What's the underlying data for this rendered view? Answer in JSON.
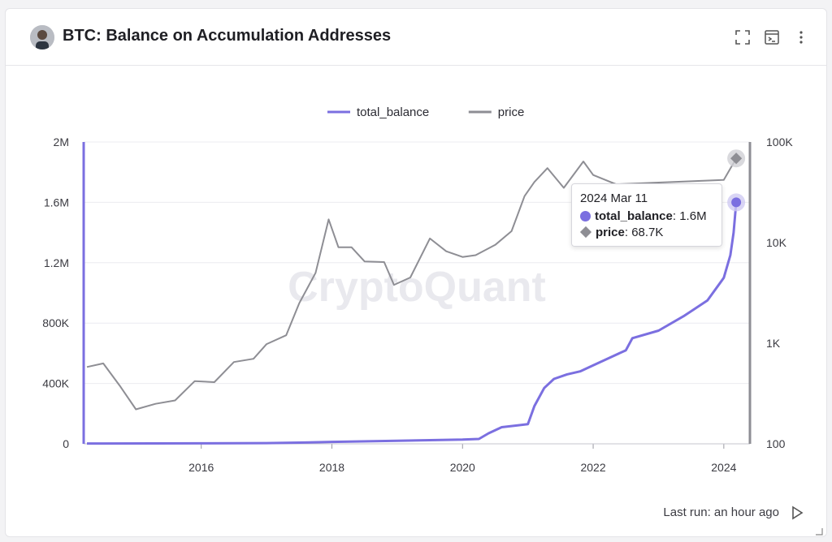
{
  "header": {
    "title": "BTC: Balance on Accumulation Addresses",
    "icons": [
      "expand-icon",
      "terminal-icon",
      "more-vert-icon"
    ]
  },
  "watermark": "CryptoQuant",
  "tooltip": {
    "date": "2024 Mar 11",
    "series": [
      {
        "name": "total_balance",
        "value": "1.6M",
        "color": "#7b6fe0"
      },
      {
        "name": "price",
        "value": "68.7K",
        "color": "#8e8e94"
      }
    ]
  },
  "footer": {
    "last_run": "Last run: an hour ago"
  },
  "colors": {
    "total_balance": "#7b6fe0",
    "price": "#8e8e94",
    "grid": "#ececf0",
    "axis": "#9a9aa2"
  },
  "chart_data": {
    "type": "line",
    "legend_position": "top-center",
    "grid": true,
    "x_ticks": [
      "2016",
      "2018",
      "2020",
      "2022",
      "2024"
    ],
    "xlim": [
      2014.2,
      2024.4
    ],
    "y_left": {
      "ylim": [
        0,
        2000000
      ],
      "ticks": [
        "0",
        "400K",
        "800K",
        "1.2M",
        "1.6M",
        "2M"
      ]
    },
    "y_right": {
      "scale": "log",
      "ylim": [
        100,
        100000
      ],
      "ticks": [
        "100",
        "1K",
        "10K",
        "100K"
      ]
    },
    "series": [
      {
        "name": "total_balance",
        "axis": "left",
        "x": [
          2014.25,
          2016.0,
          2017.0,
          2017.5,
          2018.0,
          2019.0,
          2019.5,
          2020.0,
          2020.25,
          2020.4,
          2020.6,
          2021.0,
          2021.1,
          2021.25,
          2021.4,
          2021.6,
          2021.8,
          2022.0,
          2022.3,
          2022.5,
          2022.6,
          2023.0,
          2023.4,
          2023.75,
          2024.0,
          2024.1,
          2024.15,
          2024.19
        ],
        "y": [
          2000,
          3000,
          5000,
          8000,
          13000,
          20000,
          24000,
          28000,
          32000,
          70000,
          110000,
          130000,
          250000,
          370000,
          430000,
          460000,
          480000,
          520000,
          580000,
          620000,
          700000,
          750000,
          850000,
          950000,
          1100000,
          1250000,
          1400000,
          1600000
        ]
      },
      {
        "name": "price",
        "axis": "right",
        "x": [
          2014.25,
          2014.5,
          2014.75,
          2015.0,
          2015.3,
          2015.6,
          2015.9,
          2016.2,
          2016.5,
          2016.8,
          2017.0,
          2017.3,
          2017.5,
          2017.75,
          2017.95,
          2018.1,
          2018.3,
          2018.5,
          2018.8,
          2018.95,
          2019.2,
          2019.5,
          2019.75,
          2020.0,
          2020.2,
          2020.5,
          2020.75,
          2020.95,
          2021.1,
          2021.3,
          2021.55,
          2021.85,
          2022.0,
          2022.35,
          2024.0,
          2024.19
        ],
        "y": [
          580,
          630,
          380,
          220,
          250,
          270,
          420,
          410,
          650,
          700,
          980,
          1200,
          2500,
          5000,
          17000,
          9000,
          9000,
          6500,
          6400,
          3800,
          4500,
          11000,
          8200,
          7200,
          7500,
          9500,
          13000,
          29000,
          40000,
          55000,
          35000,
          64000,
          47000,
          38000,
          42000,
          68700
        ]
      }
    ]
  }
}
